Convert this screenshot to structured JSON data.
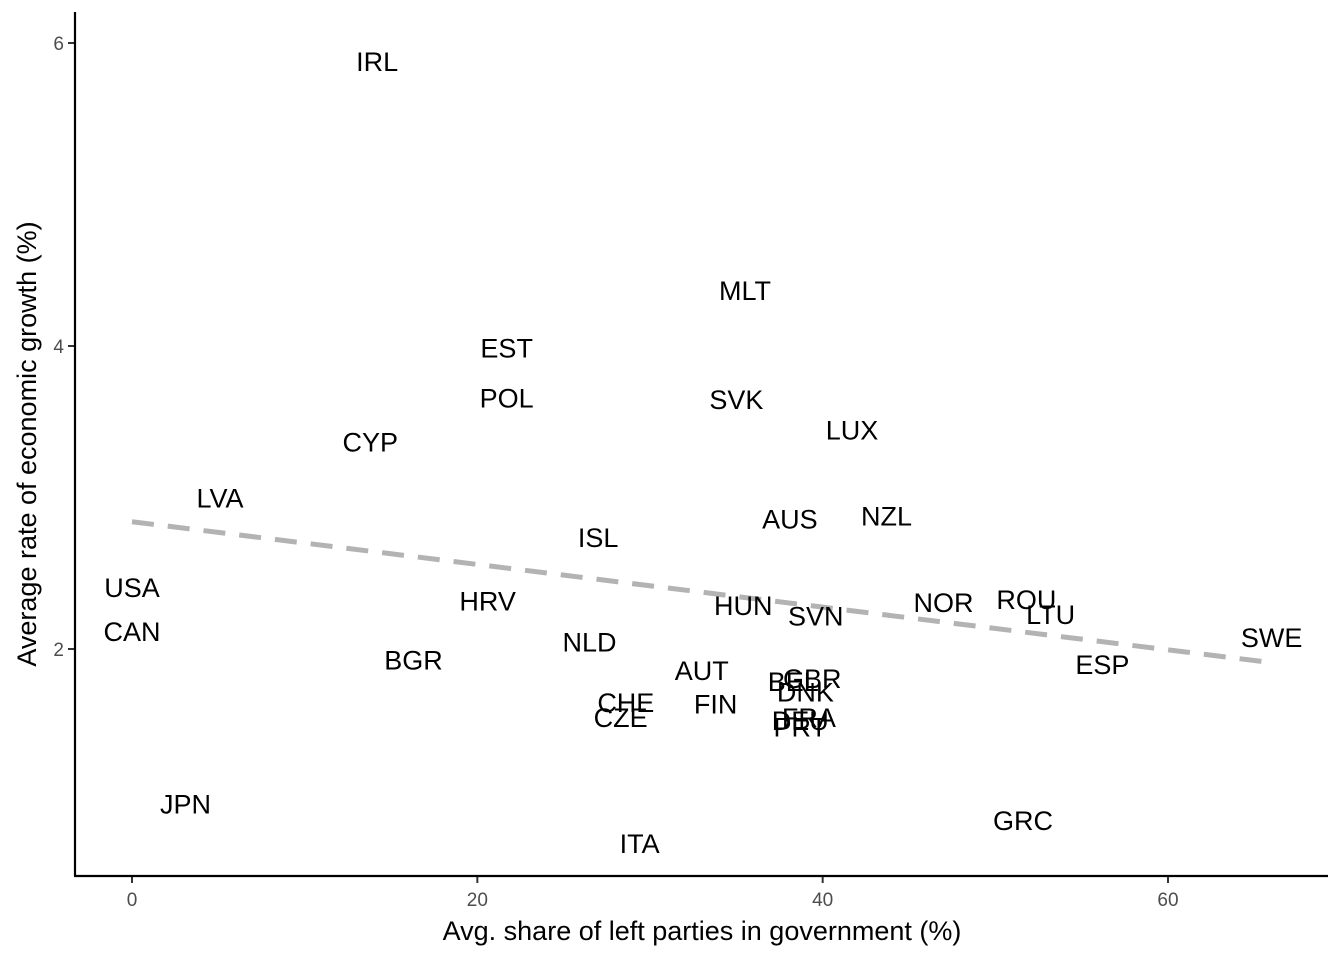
{
  "chart_data": {
    "type": "scatter",
    "xlabel": "Avg. share of left parties in government (%)",
    "ylabel": "Average rate of economic growth (%)",
    "xlim": [
      -3.3,
      69.3
    ],
    "ylim": [
      0.72,
      6.2
    ],
    "xticks": [
      0,
      20,
      40,
      60
    ],
    "yticks": [
      2,
      4,
      6
    ],
    "grid": false,
    "points": [
      {
        "label": "IRL",
        "x": 14.2,
        "y": 5.88
      },
      {
        "label": "MLT",
        "x": 35.5,
        "y": 4.37
      },
      {
        "label": "EST",
        "x": 21.7,
        "y": 3.99
      },
      {
        "label": "POL",
        "x": 21.7,
        "y": 3.66
      },
      {
        "label": "SVK",
        "x": 35.0,
        "y": 3.65
      },
      {
        "label": "LUX",
        "x": 41.7,
        "y": 3.45
      },
      {
        "label": "CYP",
        "x": 13.8,
        "y": 3.37
      },
      {
        "label": "LVA",
        "x": 5.1,
        "y": 3.0
      },
      {
        "label": "NZL",
        "x": 43.7,
        "y": 2.88
      },
      {
        "label": "AUS",
        "x": 38.1,
        "y": 2.86
      },
      {
        "label": "ISL",
        "x": 27.0,
        "y": 2.74
      },
      {
        "label": "USA",
        "x": 0.0,
        "y": 2.41
      },
      {
        "label": "HRV",
        "x": 20.6,
        "y": 2.32
      },
      {
        "label": "ROU",
        "x": 51.8,
        "y": 2.33
      },
      {
        "label": "NOR",
        "x": 47.0,
        "y": 2.31
      },
      {
        "label": "HUN",
        "x": 35.4,
        "y": 2.29
      },
      {
        "label": "LTU",
        "x": 53.2,
        "y": 2.23
      },
      {
        "label": "SVN",
        "x": 39.6,
        "y": 2.22
      },
      {
        "label": "CAN",
        "x": 0.0,
        "y": 2.12
      },
      {
        "label": "SWE",
        "x": 66.0,
        "y": 2.08
      },
      {
        "label": "NLD",
        "x": 26.5,
        "y": 2.05
      },
      {
        "label": "BGR",
        "x": 16.3,
        "y": 1.93
      },
      {
        "label": "ESP",
        "x": 56.2,
        "y": 1.9
      },
      {
        "label": "AUT",
        "x": 33.0,
        "y": 1.86
      },
      {
        "label": "GBR",
        "x": 39.4,
        "y": 1.81
      },
      {
        "label": "BEL",
        "x": 38.3,
        "y": 1.79
      },
      {
        "label": "DNK",
        "x": 39.0,
        "y": 1.72
      },
      {
        "label": "CHE",
        "x": 28.6,
        "y": 1.65
      },
      {
        "label": "FIN",
        "x": 33.8,
        "y": 1.64
      },
      {
        "label": "CZE",
        "x": 28.3,
        "y": 1.55
      },
      {
        "label": "FRA",
        "x": 39.2,
        "y": 1.55
      },
      {
        "label": "DEU",
        "x": 38.7,
        "y": 1.53
      },
      {
        "label": "PRT",
        "x": 38.7,
        "y": 1.49
      },
      {
        "label": "JPN",
        "x": 3.1,
        "y": 0.98
      },
      {
        "label": "GRC",
        "x": 51.6,
        "y": 0.87
      },
      {
        "label": "ITA",
        "x": 29.4,
        "y": 0.72
      }
    ],
    "trend": {
      "style": "dashed",
      "color": "#b3b3b3",
      "x": [
        0,
        66
      ],
      "y": [
        2.84,
        1.91
      ]
    }
  }
}
